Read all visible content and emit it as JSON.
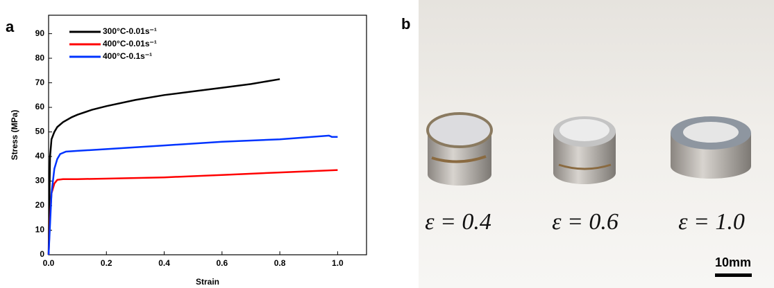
{
  "chart_data": {
    "type": "line",
    "panel_label": "a",
    "xlabel": "Strain",
    "ylabel": "Stress (MPa)",
    "xlim": [
      0,
      1.1
    ],
    "ylim": [
      0,
      97.5
    ],
    "xticks": [
      {
        "value": 0,
        "label": "0.0"
      },
      0.2,
      0.4,
      0.6,
      0.8,
      {
        "value": 1,
        "label": "1.0"
      }
    ],
    "yticks": [
      0,
      10,
      20,
      30,
      40,
      50,
      60,
      70,
      80,
      90
    ],
    "legend": "upper left",
    "series": [
      {
        "name": "300°C-0.01s⁻¹",
        "color": "#000000",
        "x": [
          0,
          0.005,
          0.01,
          0.02,
          0.03,
          0.05,
          0.08,
          0.1,
          0.15,
          0.2,
          0.3,
          0.4,
          0.5,
          0.6,
          0.7,
          0.8
        ],
        "values": [
          0,
          40,
          47,
          50,
          52,
          54,
          56,
          57,
          59,
          60.5,
          63,
          65,
          66.5,
          68,
          69.5,
          71.5
        ]
      },
      {
        "name": "400°C-0.01s⁻¹",
        "color": "#ff0000",
        "x": [
          0,
          0.005,
          0.01,
          0.02,
          0.03,
          0.05,
          0.1,
          0.2,
          0.4,
          0.6,
          0.8,
          1.0
        ],
        "values": [
          0,
          15,
          25,
          29,
          30.5,
          30.8,
          30.8,
          31,
          31.5,
          32.5,
          33.5,
          34.5
        ]
      },
      {
        "name": "400°C-0.1s⁻¹",
        "color": "#0033ff",
        "x": [
          0,
          0.01,
          0.02,
          0.03,
          0.04,
          0.06,
          0.1,
          0.2,
          0.4,
          0.6,
          0.8,
          0.97,
          0.98,
          1.0
        ],
        "values": [
          0,
          25,
          35,
          39,
          41,
          42,
          42.3,
          43,
          44.5,
          46,
          47,
          48.5,
          48,
          48
        ]
      }
    ]
  },
  "photo": {
    "panel_label": "b",
    "labels": [
      "ε = 0.4",
      "ε = 0.6",
      "ε = 1.0"
    ],
    "scale_bar": "10mm"
  }
}
